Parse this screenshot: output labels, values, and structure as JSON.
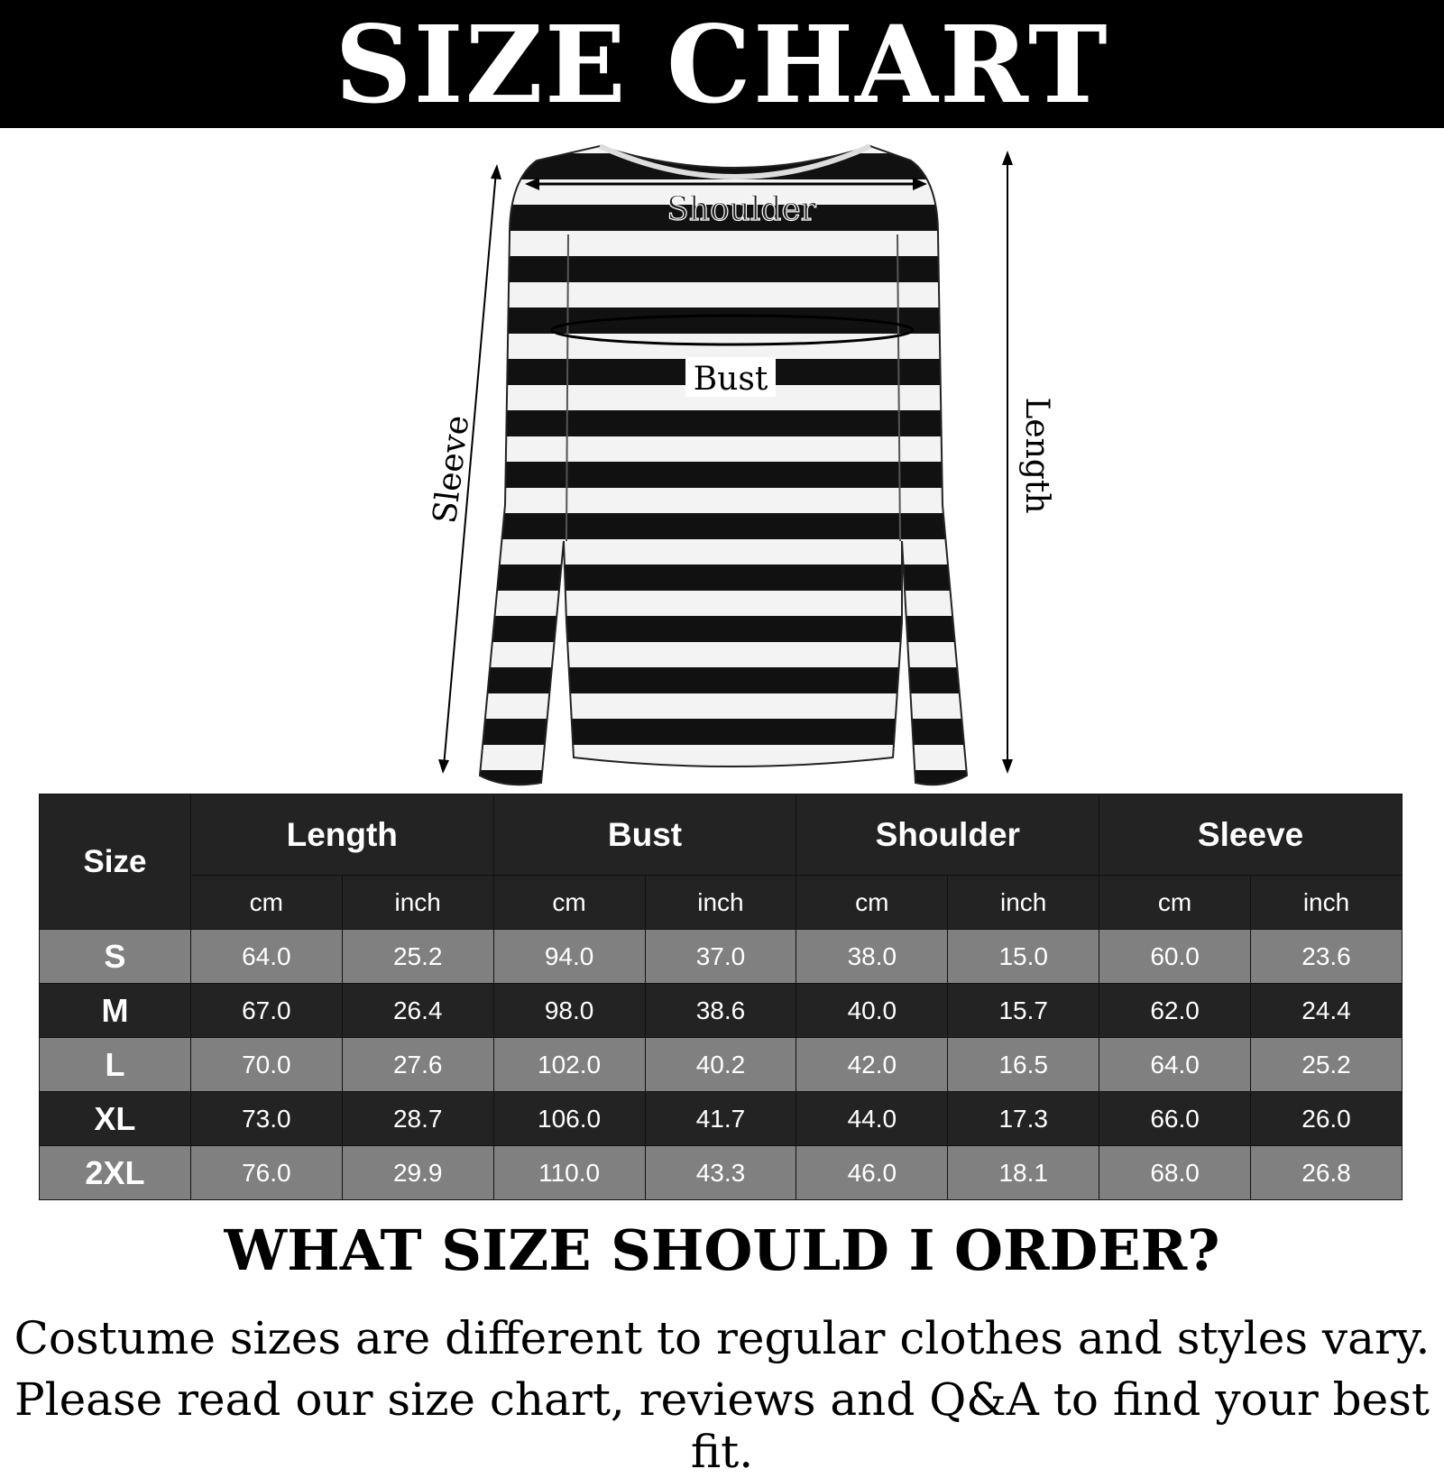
{
  "title": "SIZE CHART",
  "diagram_labels": {
    "shoulder": "Shoulder",
    "bust": "Bust",
    "sleeve": "Sleeve",
    "length": "Length"
  },
  "table": {
    "size_header": "Size",
    "groups": [
      "Length",
      "Bust",
      "Shoulder",
      "Sleeve"
    ],
    "units": [
      "cm",
      "inch",
      "cm",
      "inch",
      "cm",
      "inch",
      "cm",
      "inch"
    ],
    "rows": [
      {
        "size": "S",
        "values": [
          "64.0",
          "25.2",
          "94.0",
          "37.0",
          "38.0",
          "15.0",
          "60.0",
          "23.6"
        ]
      },
      {
        "size": "M",
        "values": [
          "67.0",
          "26.4",
          "98.0",
          "38.6",
          "40.0",
          "15.7",
          "62.0",
          "24.4"
        ]
      },
      {
        "size": "L",
        "values": [
          "70.0",
          "27.6",
          "102.0",
          "40.2",
          "42.0",
          "16.5",
          "64.0",
          "25.2"
        ]
      },
      {
        "size": "XL",
        "values": [
          "73.0",
          "28.7",
          "106.0",
          "41.7",
          "44.0",
          "17.3",
          "66.0",
          "26.0"
        ]
      },
      {
        "size": "2XL",
        "values": [
          "76.0",
          "29.9",
          "110.0",
          "43.3",
          "46.0",
          "18.1",
          "68.0",
          "26.8"
        ]
      }
    ]
  },
  "question": "WHAT SIZE SHOULD I ORDER?",
  "note_lines": [
    "Costume sizes are different to regular clothes and styles vary.",
    "Please read our size chart, reviews and Q&A to find your best fit."
  ],
  "colors": {
    "header_bg": "#232323",
    "row_light": "#808080",
    "row_dark": "#232323",
    "banner": "#000000"
  }
}
